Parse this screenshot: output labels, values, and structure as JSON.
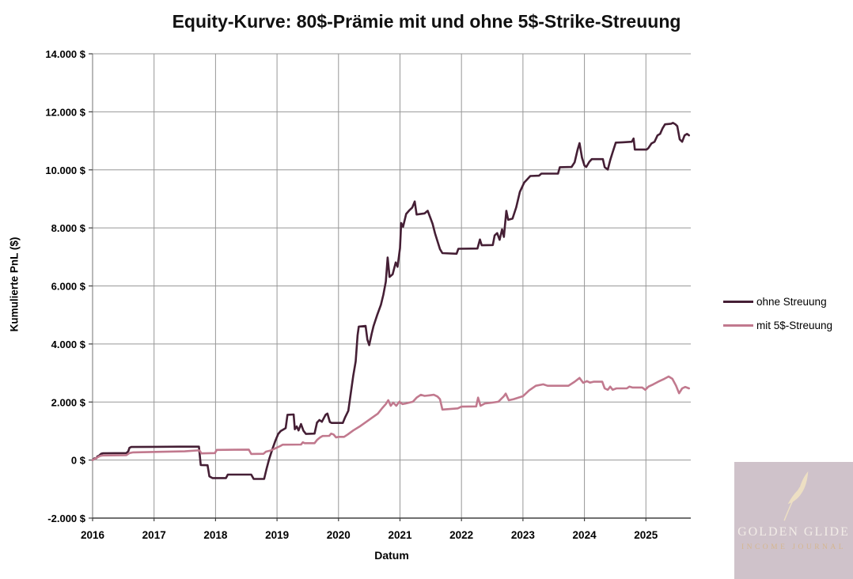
{
  "title": "Equity-Kurve: 80$-Prämie mit und ohne 5$-Strike-Streuung",
  "watermark": {
    "line1": "GOLDEN GLIDE",
    "line2": "INCOME JOURNAL",
    "colors": {
      "bg": "#CFC2CA",
      "title": "#F2ECE7",
      "subtitle": "#D5B68F",
      "feather": "#EDDFC3"
    }
  },
  "chart_data": {
    "type": "line",
    "title": "Equity-Kurve: 80$-Prämie mit und ohne 5$-Strike-Streuung",
    "xlabel": "Datum",
    "ylabel": "Kumulierte PnL ($)",
    "grid": true,
    "legend_position": "right",
    "colors": {
      "grid": "#979797",
      "axis_y": "#8a8a8a",
      "axis_x": "#404040",
      "tick_text": "#000000"
    },
    "x_axis": {
      "min": 2016,
      "max": 2025.73,
      "ticks": [
        {
          "label": "2016",
          "value": 2016
        },
        {
          "label": "2017",
          "value": 2017
        },
        {
          "label": "2018",
          "value": 2018
        },
        {
          "label": "2019",
          "value": 2019
        },
        {
          "label": "2020",
          "value": 2020
        },
        {
          "label": "2021",
          "value": 2021
        },
        {
          "label": "2022",
          "value": 2022
        },
        {
          "label": "2023",
          "value": 2023
        },
        {
          "label": "2024",
          "value": 2024
        },
        {
          "label": "2025",
          "value": 2025
        }
      ]
    },
    "y_axis": {
      "min": -2000,
      "max": 14000,
      "tick_step": 2000,
      "ticks": [
        {
          "label": "14.000 $",
          "value": 14000
        },
        {
          "label": "12.000 $",
          "value": 12000
        },
        {
          "label": "10.000 $",
          "value": 10000
        },
        {
          "label": "8.000 $",
          "value": 8000
        },
        {
          "label": "6.000 $",
          "value": 6000
        },
        {
          "label": "4.000 $",
          "value": 4000
        },
        {
          "label": "2.000 $",
          "value": 2000
        },
        {
          "label": "0 $",
          "value": 0
        },
        {
          "label": "-2.000 $",
          "value": -2000
        }
      ]
    },
    "series": [
      {
        "name": "ohne Streuung",
        "color": "#451F35",
        "points": [
          [
            2016.0,
            0
          ],
          [
            2016.03,
            60
          ],
          [
            2016.06,
            60
          ],
          [
            2016.08,
            130
          ],
          [
            2016.1,
            140
          ],
          [
            2016.14,
            220
          ],
          [
            2016.17,
            235
          ],
          [
            2016.55,
            240
          ],
          [
            2016.58,
            300
          ],
          [
            2016.6,
            420
          ],
          [
            2016.63,
            450
          ],
          [
            2017.0,
            455
          ],
          [
            2017.4,
            460
          ],
          [
            2017.73,
            460
          ],
          [
            2017.76,
            -170
          ],
          [
            2017.87,
            -180
          ],
          [
            2017.9,
            -560
          ],
          [
            2017.95,
            -620
          ],
          [
            2018.17,
            -620
          ],
          [
            2018.2,
            -500
          ],
          [
            2018.58,
            -500
          ],
          [
            2018.62,
            -650
          ],
          [
            2018.79,
            -650
          ],
          [
            2018.83,
            -300
          ],
          [
            2018.87,
            20
          ],
          [
            2018.92,
            350
          ],
          [
            2018.97,
            650
          ],
          [
            2019.02,
            900
          ],
          [
            2019.06,
            1000
          ],
          [
            2019.1,
            1050
          ],
          [
            2019.14,
            1100
          ],
          [
            2019.17,
            1560
          ],
          [
            2019.27,
            1570
          ],
          [
            2019.29,
            1060
          ],
          [
            2019.32,
            1160
          ],
          [
            2019.35,
            1020
          ],
          [
            2019.39,
            1240
          ],
          [
            2019.43,
            1010
          ],
          [
            2019.47,
            900
          ],
          [
            2019.61,
            910
          ],
          [
            2019.65,
            1290
          ],
          [
            2019.69,
            1380
          ],
          [
            2019.73,
            1320
          ],
          [
            2019.79,
            1560
          ],
          [
            2019.82,
            1600
          ],
          [
            2019.86,
            1310
          ],
          [
            2019.89,
            1280
          ],
          [
            2020.07,
            1280
          ],
          [
            2020.11,
            1480
          ],
          [
            2020.16,
            1700
          ],
          [
            2020.2,
            2300
          ],
          [
            2020.24,
            2900
          ],
          [
            2020.28,
            3400
          ],
          [
            2020.31,
            4300
          ],
          [
            2020.33,
            4600
          ],
          [
            2020.44,
            4620
          ],
          [
            2020.47,
            4150
          ],
          [
            2020.5,
            3960
          ],
          [
            2020.54,
            4350
          ],
          [
            2020.57,
            4620
          ],
          [
            2020.63,
            5000
          ],
          [
            2020.69,
            5350
          ],
          [
            2020.73,
            5700
          ],
          [
            2020.77,
            6150
          ],
          [
            2020.8,
            6980
          ],
          [
            2020.83,
            6310
          ],
          [
            2020.88,
            6400
          ],
          [
            2020.93,
            6810
          ],
          [
            2020.96,
            6660
          ],
          [
            2021.0,
            7300
          ],
          [
            2021.02,
            8170
          ],
          [
            2021.05,
            8040
          ],
          [
            2021.1,
            8480
          ],
          [
            2021.15,
            8600
          ],
          [
            2021.2,
            8700
          ],
          [
            2021.24,
            8910
          ],
          [
            2021.27,
            8460
          ],
          [
            2021.4,
            8500
          ],
          [
            2021.45,
            8590
          ],
          [
            2021.49,
            8370
          ],
          [
            2021.53,
            8140
          ],
          [
            2021.57,
            7810
          ],
          [
            2021.61,
            7540
          ],
          [
            2021.65,
            7270
          ],
          [
            2021.69,
            7130
          ],
          [
            2021.92,
            7110
          ],
          [
            2021.95,
            7280
          ],
          [
            2022.26,
            7290
          ],
          [
            2022.3,
            7600
          ],
          [
            2022.33,
            7400
          ],
          [
            2022.51,
            7410
          ],
          [
            2022.54,
            7740
          ],
          [
            2022.58,
            7820
          ],
          [
            2022.62,
            7590
          ],
          [
            2022.66,
            7950
          ],
          [
            2022.69,
            7690
          ],
          [
            2022.73,
            8590
          ],
          [
            2022.76,
            8280
          ],
          [
            2022.83,
            8320
          ],
          [
            2022.89,
            8700
          ],
          [
            2022.95,
            9240
          ],
          [
            2023.02,
            9560
          ],
          [
            2023.06,
            9650
          ],
          [
            2023.12,
            9790
          ],
          [
            2023.26,
            9800
          ],
          [
            2023.3,
            9870
          ],
          [
            2023.57,
            9870
          ],
          [
            2023.6,
            10090
          ],
          [
            2023.79,
            10100
          ],
          [
            2023.84,
            10260
          ],
          [
            2023.89,
            10700
          ],
          [
            2023.92,
            10920
          ],
          [
            2023.96,
            10420
          ],
          [
            2024.0,
            10150
          ],
          [
            2024.03,
            10100
          ],
          [
            2024.08,
            10280
          ],
          [
            2024.12,
            10370
          ],
          [
            2024.3,
            10370
          ],
          [
            2024.33,
            10090
          ],
          [
            2024.38,
            10010
          ],
          [
            2024.42,
            10340
          ],
          [
            2024.46,
            10610
          ],
          [
            2024.51,
            10940
          ],
          [
            2024.62,
            10950
          ],
          [
            2024.77,
            10970
          ],
          [
            2024.8,
            11080
          ],
          [
            2024.82,
            10700
          ],
          [
            2025.01,
            10700
          ],
          [
            2025.04,
            10750
          ],
          [
            2025.09,
            10910
          ],
          [
            2025.14,
            10970
          ],
          [
            2025.19,
            11190
          ],
          [
            2025.23,
            11240
          ],
          [
            2025.27,
            11430
          ],
          [
            2025.31,
            11570
          ],
          [
            2025.41,
            11590
          ],
          [
            2025.44,
            11620
          ],
          [
            2025.48,
            11570
          ],
          [
            2025.51,
            11510
          ],
          [
            2025.55,
            11050
          ],
          [
            2025.59,
            10970
          ],
          [
            2025.63,
            11190
          ],
          [
            2025.67,
            11240
          ],
          [
            2025.7,
            11190
          ]
        ]
      },
      {
        "name": "mit 5$-Streuung",
        "color": "#C1798E",
        "points": [
          [
            2016.0,
            0
          ],
          [
            2016.04,
            50
          ],
          [
            2016.08,
            90
          ],
          [
            2016.12,
            140
          ],
          [
            2016.16,
            160
          ],
          [
            2016.55,
            170
          ],
          [
            2016.6,
            240
          ],
          [
            2016.66,
            265
          ],
          [
            2017.1,
            285
          ],
          [
            2017.5,
            300
          ],
          [
            2017.7,
            330
          ],
          [
            2017.74,
            330
          ],
          [
            2017.77,
            230
          ],
          [
            2017.99,
            240
          ],
          [
            2018.02,
            350
          ],
          [
            2018.3,
            355
          ],
          [
            2018.54,
            360
          ],
          [
            2018.58,
            210
          ],
          [
            2018.78,
            215
          ],
          [
            2018.82,
            290
          ],
          [
            2018.9,
            330
          ],
          [
            2018.99,
            420
          ],
          [
            2019.05,
            480
          ],
          [
            2019.09,
            530
          ],
          [
            2019.39,
            535
          ],
          [
            2019.42,
            610
          ],
          [
            2019.45,
            580
          ],
          [
            2019.61,
            580
          ],
          [
            2019.65,
            690
          ],
          [
            2019.7,
            780
          ],
          [
            2019.74,
            830
          ],
          [
            2019.85,
            835
          ],
          [
            2019.88,
            910
          ],
          [
            2019.92,
            880
          ],
          [
            2019.96,
            780
          ],
          [
            2020.0,
            800
          ],
          [
            2020.09,
            800
          ],
          [
            2020.15,
            880
          ],
          [
            2020.24,
            1020
          ],
          [
            2020.34,
            1150
          ],
          [
            2020.44,
            1300
          ],
          [
            2020.54,
            1450
          ],
          [
            2020.64,
            1600
          ],
          [
            2020.71,
            1790
          ],
          [
            2020.77,
            1930
          ],
          [
            2020.81,
            2060
          ],
          [
            2020.85,
            1870
          ],
          [
            2020.89,
            1980
          ],
          [
            2020.94,
            1870
          ],
          [
            2020.99,
            2010
          ],
          [
            2021.04,
            1930
          ],
          [
            2021.09,
            1950
          ],
          [
            2021.15,
            1980
          ],
          [
            2021.21,
            2010
          ],
          [
            2021.27,
            2150
          ],
          [
            2021.34,
            2250
          ],
          [
            2021.4,
            2210
          ],
          [
            2021.48,
            2230
          ],
          [
            2021.55,
            2250
          ],
          [
            2021.61,
            2190
          ],
          [
            2021.65,
            2100
          ],
          [
            2021.69,
            1740
          ],
          [
            2021.94,
            1780
          ],
          [
            2022.0,
            1840
          ],
          [
            2022.24,
            1850
          ],
          [
            2022.27,
            2150
          ],
          [
            2022.31,
            1870
          ],
          [
            2022.38,
            1950
          ],
          [
            2022.5,
            1980
          ],
          [
            2022.6,
            2010
          ],
          [
            2022.69,
            2200
          ],
          [
            2022.72,
            2290
          ],
          [
            2022.77,
            2060
          ],
          [
            2022.85,
            2100
          ],
          [
            2023.0,
            2200
          ],
          [
            2023.1,
            2400
          ],
          [
            2023.21,
            2560
          ],
          [
            2023.33,
            2610
          ],
          [
            2023.4,
            2560
          ],
          [
            2023.74,
            2560
          ],
          [
            2023.84,
            2700
          ],
          [
            2023.92,
            2830
          ],
          [
            2023.98,
            2660
          ],
          [
            2024.04,
            2720
          ],
          [
            2024.09,
            2670
          ],
          [
            2024.15,
            2700
          ],
          [
            2024.29,
            2700
          ],
          [
            2024.33,
            2470
          ],
          [
            2024.38,
            2420
          ],
          [
            2024.42,
            2530
          ],
          [
            2024.46,
            2420
          ],
          [
            2024.52,
            2470
          ],
          [
            2024.69,
            2470
          ],
          [
            2024.73,
            2530
          ],
          [
            2024.78,
            2500
          ],
          [
            2024.94,
            2500
          ],
          [
            2024.99,
            2420
          ],
          [
            2025.04,
            2530
          ],
          [
            2025.12,
            2610
          ],
          [
            2025.2,
            2700
          ],
          [
            2025.3,
            2800
          ],
          [
            2025.37,
            2880
          ],
          [
            2025.43,
            2800
          ],
          [
            2025.49,
            2560
          ],
          [
            2025.54,
            2300
          ],
          [
            2025.59,
            2470
          ],
          [
            2025.64,
            2520
          ],
          [
            2025.7,
            2470
          ]
        ]
      }
    ]
  }
}
